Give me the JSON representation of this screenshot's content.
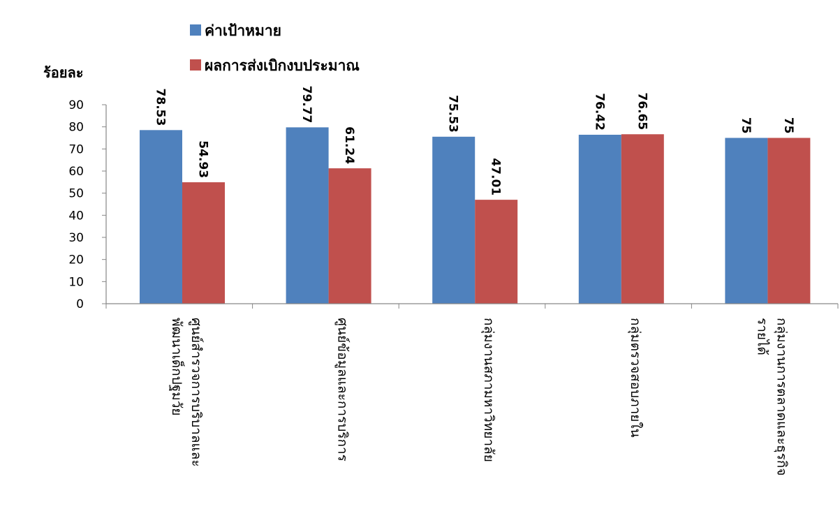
{
  "chart_data": {
    "type": "bar",
    "ylabel": "ร้อยละ",
    "ylim": [
      0,
      90
    ],
    "yticks": [
      0,
      10,
      20,
      30,
      40,
      50,
      60,
      70,
      80,
      90
    ],
    "grid": false,
    "legend_position": "top-left",
    "categories": [
      [
        "ศูนย์สำรวจการบริบาลและ",
        "พัฒนาเด็กปฐมวัย"
      ],
      [
        "ศูนย์ข้อมูลและการบริการ"
      ],
      [
        "กลุ่มงานสภามหาวิทยาลัย"
      ],
      [
        "กลุ่มตรวจสอบภายใน"
      ],
      [
        "กลุ่มงานการตลาดและธุรกิจ",
        "รายได้"
      ]
    ],
    "series": [
      {
        "name": "ค่าเป้าหมาย",
        "color": "#4F81BD",
        "values": [
          78.53,
          79.77,
          75.53,
          76.42,
          75
        ],
        "labels": [
          "78.53",
          "79.77",
          "75.53",
          "76.42",
          "75"
        ]
      },
      {
        "name": "ผลการส่งเบิกงบประมาณ",
        "color": "#C0504D",
        "values": [
          54.93,
          61.24,
          47.01,
          76.65,
          75
        ],
        "labels": [
          "54.93",
          "61.24",
          "47.01",
          "76.65",
          "75"
        ]
      }
    ]
  }
}
